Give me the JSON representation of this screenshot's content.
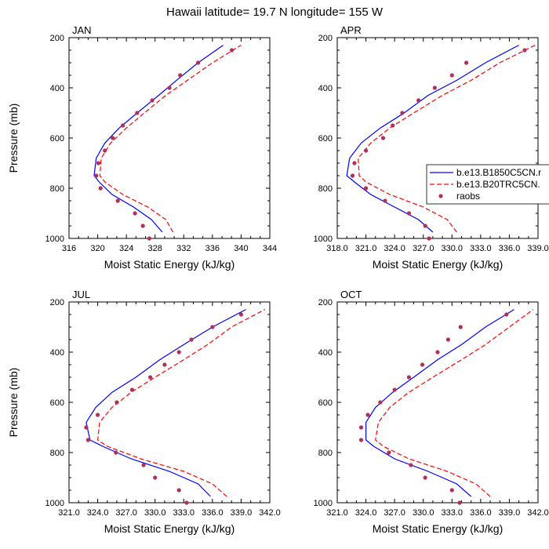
{
  "title": "Hawaii  latitude= 19.7 N longitude= 155 W",
  "colors": {
    "model1": "#0000ff",
    "model2": "#ff0000",
    "obs": "#b0305a",
    "axes": "#000000"
  },
  "legend": {
    "entries": [
      {
        "label": "b.e13.B1850C5CN.r",
        "style": "solid"
      },
      {
        "label": "b.e13.B20TRC5CN.",
        "style": "dashed"
      },
      {
        "label": "raobs",
        "style": "marker"
      }
    ]
  },
  "chart_data": [
    {
      "type": "line",
      "panel": "JAN",
      "xlabel": "Moist Static Energy (kJ/kg)",
      "ylabel": "Pressure (mb)",
      "xlim": [
        316,
        344
      ],
      "ylim": [
        200,
        1000
      ],
      "y_reversed": true,
      "xticks": [
        316,
        320,
        324,
        328,
        332,
        336,
        340,
        344
      ],
      "xtick_labels": [
        "316",
        "320",
        "324",
        "328",
        "332",
        "336",
        "340",
        "344"
      ],
      "yticks": [
        200,
        400,
        600,
        800,
        1000
      ],
      "series": [
        {
          "name": "b.e13.B1850C5CN.r",
          "style": "solid",
          "x": [
            329.0,
            327.5,
            325.0,
            322.0,
            320.2,
            319.5,
            319.8,
            321.0,
            323.0,
            325.5,
            328.5,
            331.0,
            334.0,
            337.5
          ],
          "y": [
            975,
            925,
            875,
            825,
            775,
            750,
            680,
            620,
            560,
            500,
            430,
            370,
            300,
            230
          ]
        },
        {
          "name": "b.e13.B20TRC5CN.",
          "style": "dashed",
          "x": [
            330.5,
            329.5,
            327.0,
            323.5,
            321.0,
            320.3,
            320.5,
            321.8,
            324.0,
            326.5,
            329.5,
            332.5,
            336.0,
            340.0
          ],
          "y": [
            975,
            925,
            875,
            825,
            775,
            750,
            680,
            620,
            560,
            500,
            430,
            370,
            300,
            230
          ]
        }
      ],
      "points": {
        "name": "raobs",
        "x": [
          327.2,
          326.3,
          325.2,
          322.8,
          320.4,
          319.8,
          320.1,
          321.0,
          322.1,
          323.5,
          325.5,
          327.6,
          330.0,
          331.5,
          334.0,
          338.7
        ],
        "y": [
          1000,
          950,
          900,
          850,
          800,
          750,
          700,
          650,
          600,
          550,
          500,
          450,
          400,
          350,
          300,
          250
        ]
      }
    },
    {
      "type": "line",
      "panel": "APR",
      "xlabel": "Moist Static Energy (kJ/kg)",
      "ylabel": "",
      "xlim": [
        318.0,
        339.0
      ],
      "ylim": [
        200,
        1000
      ],
      "y_reversed": true,
      "xticks": [
        318,
        321,
        324,
        327,
        330,
        333,
        336,
        339
      ],
      "xtick_labels": [
        "318.0",
        "321.0",
        "324.0",
        "327.0",
        "330.0",
        "333.0",
        "336.0",
        "339.0"
      ],
      "yticks": [
        200,
        400,
        600,
        800,
        1000
      ],
      "series": [
        {
          "name": "b.e13.B1850C5CN.r",
          "style": "solid",
          "x": [
            328.0,
            326.5,
            324.0,
            321.5,
            319.8,
            319.0,
            319.3,
            320.5,
            322.5,
            325.0,
            327.5,
            330.5,
            333.5,
            337.0
          ],
          "y": [
            975,
            925,
            875,
            825,
            775,
            750,
            680,
            620,
            560,
            500,
            430,
            370,
            300,
            230
          ]
        },
        {
          "name": "b.e13.B20TRC5CN.",
          "style": "dashed",
          "x": [
            330.5,
            329.5,
            327.0,
            323.5,
            321.0,
            320.3,
            320.2,
            321.5,
            323.5,
            326.0,
            329.0,
            332.0,
            335.0,
            338.7
          ],
          "y": [
            975,
            925,
            875,
            825,
            775,
            750,
            680,
            620,
            560,
            500,
            430,
            370,
            300,
            230
          ]
        }
      ],
      "points": {
        "name": "raobs",
        "x": [
          327.6,
          327.2,
          325.5,
          323.0,
          321.0,
          319.6,
          319.8,
          321.0,
          322.8,
          323.8,
          324.8,
          326.5,
          328.2,
          330.0,
          331.5,
          337.6
        ],
        "y": [
          1000,
          950,
          900,
          850,
          800,
          750,
          700,
          650,
          600,
          550,
          500,
          450,
          400,
          350,
          300,
          250
        ]
      }
    },
    {
      "type": "line",
      "panel": "JUL",
      "xlabel": "Moist Static Energy (kJ/kg)",
      "ylabel": "Pressure (mb)",
      "xlim": [
        321.0,
        342.0
      ],
      "ylim": [
        200,
        1000
      ],
      "y_reversed": true,
      "xticks": [
        321,
        324,
        327,
        330,
        333,
        336,
        339,
        342
      ],
      "xtick_labels": [
        "321.0",
        "324.0",
        "327.0",
        "330.0",
        "333.0",
        "336.0",
        "339.0",
        "342.0"
      ],
      "yticks": [
        200,
        400,
        600,
        800,
        1000
      ],
      "series": [
        {
          "name": "b.e13.B1850C5CN.r",
          "style": "solid",
          "x": [
            335.8,
            334.5,
            331.5,
            327.5,
            324.5,
            323.2,
            322.8,
            323.8,
            325.5,
            328.0,
            330.5,
            333.0,
            336.0,
            339.5
          ],
          "y": [
            975,
            925,
            875,
            825,
            775,
            750,
            680,
            620,
            560,
            500,
            430,
            370,
            300,
            230
          ]
        },
        {
          "name": "b.e13.B20TRC5CN.",
          "style": "dashed",
          "x": [
            337.5,
            336.0,
            333.0,
            328.5,
            325.0,
            324.0,
            324.2,
            325.5,
            327.5,
            330.0,
            333.0,
            335.5,
            338.0,
            341.5
          ],
          "y": [
            975,
            925,
            875,
            825,
            775,
            750,
            680,
            620,
            560,
            500,
            430,
            370,
            300,
            230
          ]
        }
      ],
      "points": {
        "name": "raobs",
        "x": [
          333.3,
          332.5,
          330.0,
          328.8,
          325.9,
          323.0,
          322.8,
          324.0,
          326.0,
          327.6,
          329.5,
          331.0,
          332.5,
          333.8,
          336.0,
          339.0
        ],
        "y": [
          1000,
          950,
          900,
          850,
          800,
          750,
          700,
          650,
          600,
          550,
          500,
          450,
          400,
          350,
          300,
          250
        ]
      }
    },
    {
      "type": "line",
      "panel": "OCT",
      "xlabel": "Moist Static Energy (kJ/kg)",
      "ylabel": "",
      "xlim": [
        321.0,
        342.0
      ],
      "ylim": [
        200,
        1000
      ],
      "y_reversed": true,
      "xticks": [
        321,
        324,
        327,
        330,
        333,
        336,
        339,
        342
      ],
      "xtick_labels": [
        "321.0",
        "324.0",
        "327.0",
        "330.0",
        "333.0",
        "336.0",
        "339.0",
        "342.0"
      ],
      "yticks": [
        200,
        400,
        600,
        800,
        1000
      ],
      "series": [
        {
          "name": "b.e13.B1850C5CN.r",
          "style": "solid",
          "x": [
            335.0,
            333.5,
            330.5,
            327.0,
            324.8,
            324.0,
            324.0,
            325.0,
            326.8,
            329.0,
            331.5,
            334.0,
            336.5,
            339.5
          ],
          "y": [
            975,
            925,
            875,
            825,
            775,
            750,
            680,
            620,
            560,
            500,
            430,
            370,
            300,
            230
          ]
        },
        {
          "name": "b.e13.B20TRC5CN.",
          "style": "dashed",
          "x": [
            337.0,
            335.5,
            332.5,
            328.5,
            325.8,
            325.0,
            325.3,
            326.5,
            328.5,
            331.0,
            334.0,
            336.5,
            339.0,
            341.5
          ],
          "y": [
            975,
            925,
            875,
            825,
            775,
            750,
            680,
            620,
            560,
            500,
            430,
            370,
            300,
            230
          ]
        }
      ],
      "points": {
        "name": "raobs",
        "x": [
          333.8,
          333.0,
          330.2,
          328.7,
          326.4,
          323.5,
          323.5,
          324.2,
          325.5,
          327.0,
          328.5,
          329.9,
          331.5,
          332.6,
          333.9,
          338.7
        ],
        "y": [
          1000,
          950,
          900,
          850,
          800,
          750,
          700,
          650,
          600,
          550,
          500,
          450,
          400,
          350,
          300,
          250
        ]
      }
    }
  ]
}
